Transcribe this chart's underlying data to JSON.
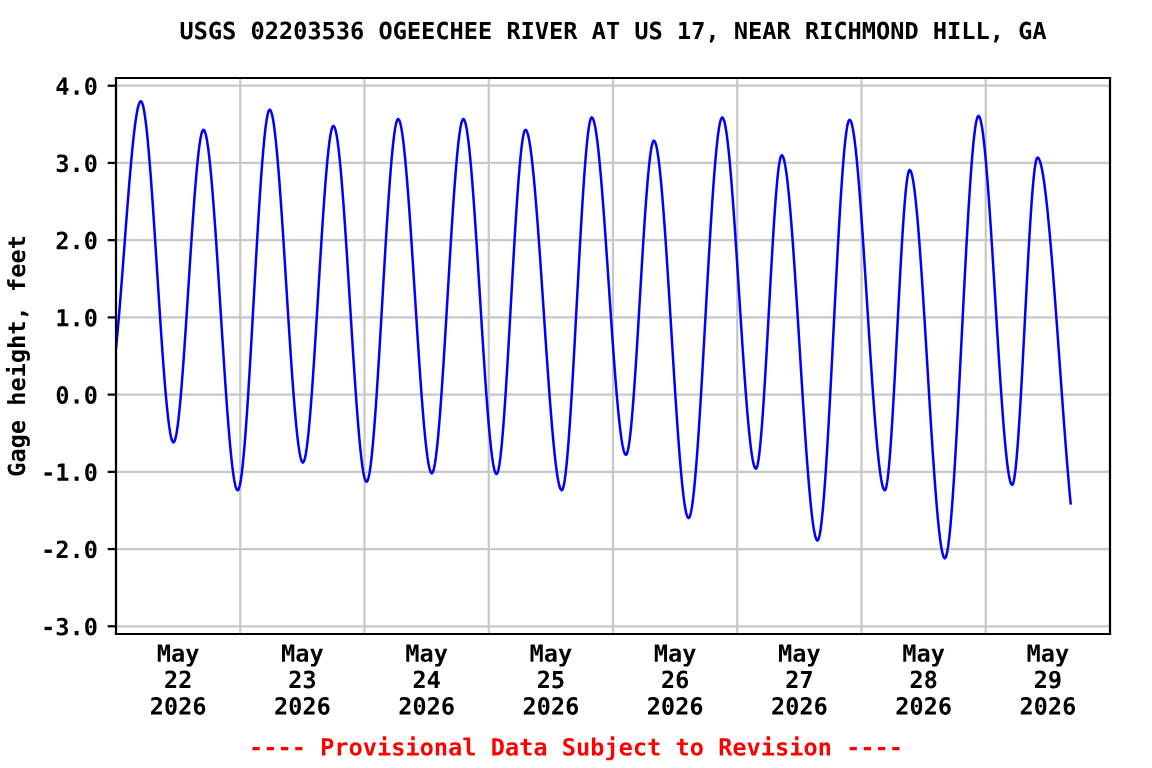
{
  "chart_data": {
    "type": "line",
    "title": "USGS 02203536 OGEECHEE RIVER AT US 17, NEAR RICHMOND HILL, GA",
    "ylabel": "Gage height, feet",
    "annotations": [
      "---- Provisional Data Subject to Revision ----"
    ],
    "x": [
      "2026-05-22T00:00",
      "2026-05-22T04:48",
      "2026-05-22T11:06",
      "2026-05-22T16:54",
      "2026-05-22T23:30",
      "2026-05-23T05:42",
      "2026-05-23T12:06",
      "2026-05-23T18:00",
      "2026-05-24T00:24",
      "2026-05-24T06:30",
      "2026-05-24T13:00",
      "2026-05-24T19:06",
      "2026-05-25T01:30",
      "2026-05-25T07:06",
      "2026-05-25T14:06",
      "2026-05-25T19:54",
      "2026-05-26T02:30",
      "2026-05-26T07:54",
      "2026-05-26T14:36",
      "2026-05-26T21:06",
      "2026-05-27T03:36",
      "2026-05-27T08:36",
      "2026-05-27T15:30",
      "2026-05-27T21:42",
      "2026-05-28T04:30",
      "2026-05-28T09:18",
      "2026-05-28T16:06",
      "2026-05-28T22:36",
      "2026-05-29T05:06",
      "2026-05-29T10:00",
      "2026-05-29T16:24"
    ],
    "series": [
      {
        "color": "#0000ff",
        "values": [
          0.6,
          3.8,
          -0.62,
          3.43,
          -1.24,
          3.69,
          -0.88,
          3.48,
          -1.13,
          3.57,
          -1.02,
          3.57,
          -1.03,
          3.43,
          -1.24,
          3.59,
          -0.78,
          3.29,
          -1.6,
          3.59,
          -0.96,
          3.1,
          -1.89,
          3.56,
          -1.24,
          2.91,
          -2.12,
          3.61,
          -1.17,
          3.07,
          -1.41
        ]
      }
    ],
    "xlim": [
      "2026-05-22T00:00",
      "2026-05-30T00:00"
    ],
    "xticks": [
      {
        "value": "2026-05-22T12:00",
        "label": "May\n22\n2026"
      },
      {
        "value": "2026-05-23T00:00",
        "label": null
      },
      {
        "value": "2026-05-23T12:00",
        "label": "May\n23\n2026"
      },
      {
        "value": "2026-05-24T00:00",
        "label": null
      },
      {
        "value": "2026-05-24T12:00",
        "label": "May\n24\n2026"
      },
      {
        "value": "2026-05-25T00:00",
        "label": null
      },
      {
        "value": "2026-05-25T12:00",
        "label": "May\n25\n2026"
      },
      {
        "value": "2026-05-26T00:00",
        "label": null
      },
      {
        "value": "2026-05-26T12:00",
        "label": "May\n26\n2026"
      },
      {
        "value": "2026-05-27T00:00",
        "label": null
      },
      {
        "value": "2026-05-27T12:00",
        "label": "May\n27\n2026"
      },
      {
        "value": "2026-05-28T00:00",
        "label": null
      },
      {
        "value": "2026-05-28T12:00",
        "label": "May\n28\n2026"
      },
      {
        "value": "2026-05-29T00:00",
        "label": null
      },
      {
        "value": "2026-05-29T12:00",
        "label": "May\n29\n2026"
      }
    ],
    "ylim": [
      -3.1,
      4.1
    ],
    "yticks": [
      {
        "value": -3.0,
        "label": "-3.0"
      },
      {
        "value": -2.0,
        "label": "-2.0"
      },
      {
        "value": -1.0,
        "label": "-1.0"
      },
      {
        "value": 0.0,
        "label": "0.0"
      },
      {
        "value": 1.0,
        "label": "1.0"
      },
      {
        "value": 2.0,
        "label": "2.0"
      },
      {
        "value": 3.0,
        "label": "3.0"
      },
      {
        "value": 4.0,
        "label": "4.0"
      }
    ],
    "grid": true,
    "line_style": "solid"
  }
}
